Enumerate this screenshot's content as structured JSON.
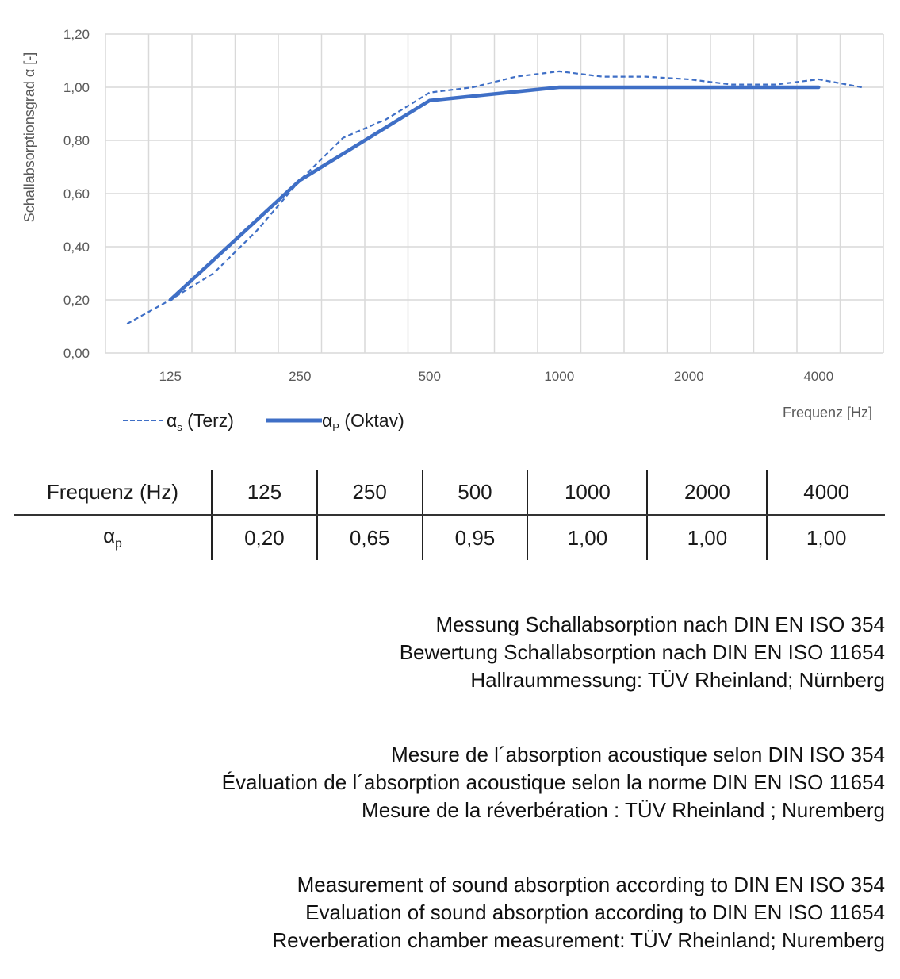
{
  "chart_data": {
    "type": "line",
    "title": "",
    "xlabel": "Frequenz [Hz]",
    "ylabel": "Schallabsorptionsgrad α [-]",
    "ylim": [
      0,
      1.2
    ],
    "yticks": [
      "0,00",
      "0,20",
      "0,40",
      "0,60",
      "0,80",
      "1,00",
      "1,20"
    ],
    "ytick_values": [
      0,
      0.2,
      0.4,
      0.6,
      0.8,
      1.0,
      1.2
    ],
    "categories": [
      100,
      125,
      160,
      200,
      250,
      315,
      400,
      500,
      630,
      800,
      1000,
      1250,
      1600,
      2000,
      2500,
      3150,
      4000,
      5000
    ],
    "xtick_labels": {
      "125": "125",
      "250": "250",
      "500": "500",
      "1000": "1000",
      "2000": "2000",
      "4000": "4000"
    },
    "grid": true,
    "legend_position": "bottom-left",
    "series": [
      {
        "name": "αs (Terz)",
        "name_main": "α",
        "name_sub": "s",
        "name_rest": " (Terz)",
        "style": "dashed",
        "color": "#3f6fc6",
        "values": [
          0.11,
          0.2,
          0.3,
          0.46,
          0.65,
          0.81,
          0.88,
          0.98,
          1.0,
          1.04,
          1.06,
          1.04,
          1.04,
          1.03,
          1.01,
          1.01,
          1.03,
          1.0
        ]
      },
      {
        "name": "αP (Oktav)",
        "name_main": "α",
        "name_sub": "P",
        "name_rest": " (Oktav)",
        "style": "solid",
        "color": "#3f6fc6",
        "values": [
          null,
          0.2,
          null,
          null,
          0.65,
          null,
          null,
          0.95,
          null,
          null,
          1.0,
          null,
          null,
          1.0,
          null,
          null,
          1.0,
          null
        ]
      }
    ]
  },
  "table": {
    "header_label": "Frequenz (Hz)",
    "frequencies": [
      "125",
      "250",
      "500",
      "1000",
      "2000",
      "4000"
    ],
    "row_label_main": "α",
    "row_label_sub": "p",
    "values": [
      "0,20",
      "0,65",
      "0,95",
      "1,00",
      "1,00",
      "1,00"
    ]
  },
  "notes": [
    [
      "Messung Schallabsorption nach DIN EN ISO 354",
      "Bewertung Schallabsorption nach DIN EN ISO 11654",
      "Hallraummessung: TÜV Rheinland; Nürnberg"
    ],
    [
      "Mesure de l´absorption acoustique selon DIN ISO 354",
      "Évaluation de l´absorption acoustique selon la norme DIN EN ISO 11654",
      "Mesure de la réverbération : TÜV Rheinland ; Nuremberg"
    ],
    [
      "Measurement of sound absorption according to DIN EN ISO 354",
      "Evaluation of sound absorption according to DIN EN ISO 11654",
      "Reverberation chamber measurement: TÜV Rheinland; Nuremberg"
    ]
  ]
}
